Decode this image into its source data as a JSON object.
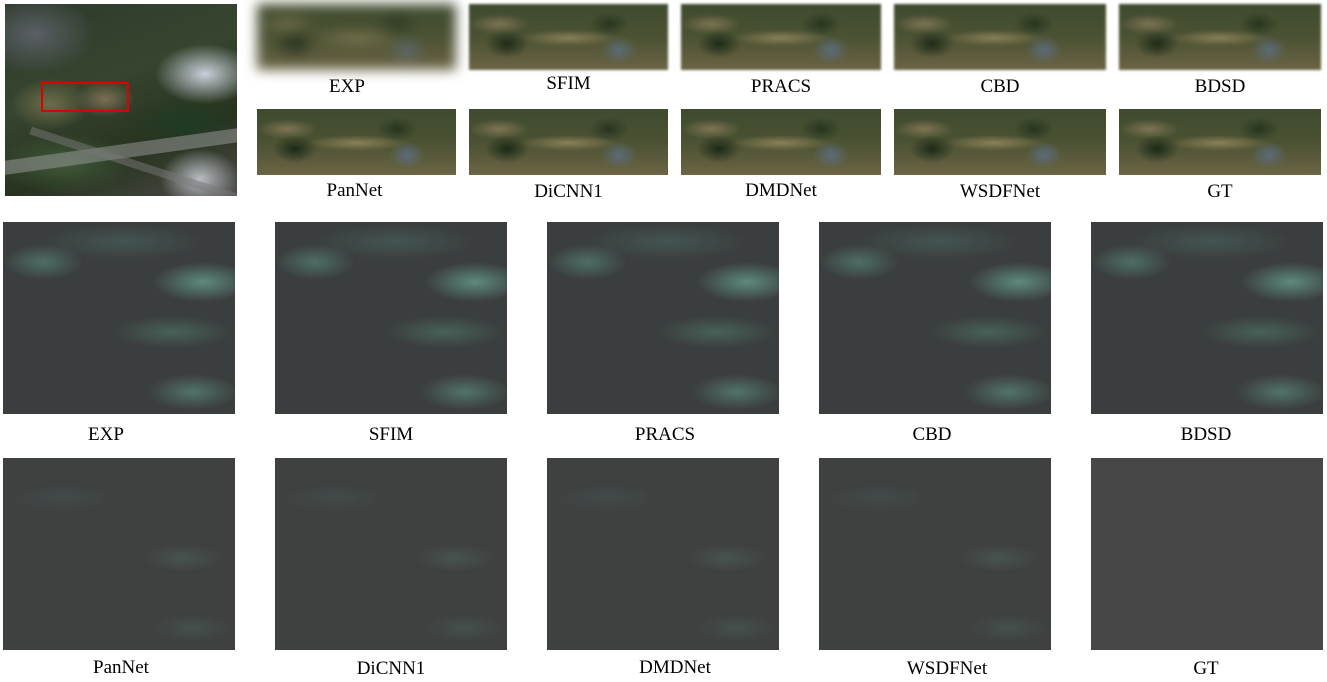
{
  "top_labels_row1": [
    "EXP",
    "SFIM",
    "PRACS",
    "CBD",
    "BDSD"
  ],
  "top_labels_row2": [
    "PanNet",
    "DiCNN1",
    "DMDNet",
    "WSDFNet",
    "GT"
  ],
  "err_labels_row1": [
    "EXP",
    "SFIM",
    "PRACS",
    "CBD",
    "BDSD"
  ],
  "err_labels_row2": [
    "PanNet",
    "DiCNN1",
    "DMDNet",
    "WSDFNet",
    "GT"
  ],
  "colors": {
    "roi_box": "#e00000",
    "background": "#ffffff"
  }
}
